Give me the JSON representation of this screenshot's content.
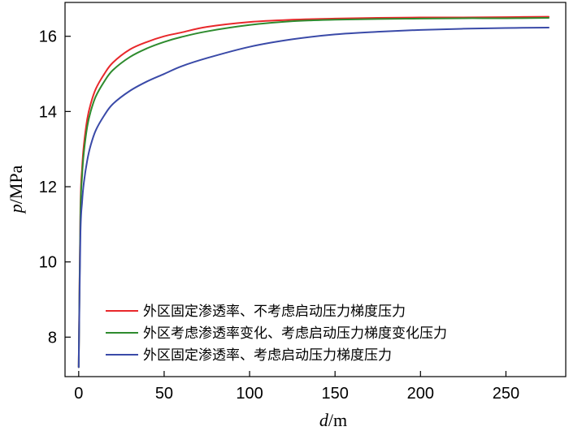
{
  "chart_data": {
    "type": "line",
    "xlabel_var": "d",
    "xlabel_unit": "/m",
    "ylabel_var": "p",
    "ylabel_unit": "/MPa",
    "xlim": [
      -8,
      285
    ],
    "ylim": [
      6.95,
      16.9
    ],
    "xticks": [
      0,
      50,
      100,
      150,
      200,
      250
    ],
    "yticks": [
      8,
      10,
      12,
      14,
      16
    ],
    "grid": false,
    "legend_position": "bottom-right",
    "series": [
      {
        "name": "外区固定渗透率、不考虑启动压力梯度压力",
        "color": "#e8282b",
        "x": [
          0,
          1,
          2,
          3,
          5,
          7,
          10,
          15,
          20,
          30,
          40,
          50,
          60,
          75,
          100,
          125,
          150,
          175,
          200,
          225,
          250,
          275
        ],
        "y": [
          7.2,
          11.4,
          12.5,
          13.1,
          13.8,
          14.2,
          14.6,
          15.0,
          15.3,
          15.65,
          15.85,
          16.0,
          16.1,
          16.25,
          16.38,
          16.44,
          16.47,
          16.49,
          16.5,
          16.5,
          16.51,
          16.52
        ]
      },
      {
        "name": "外区考虑渗透率变化、考虑启动压力梯度变化压力",
        "color": "#2e8b2e",
        "x": [
          0,
          1,
          2,
          3,
          5,
          7,
          10,
          15,
          20,
          30,
          40,
          50,
          60,
          75,
          100,
          125,
          150,
          175,
          200,
          225,
          250,
          275
        ],
        "y": [
          7.2,
          11.2,
          12.3,
          12.9,
          13.6,
          14.0,
          14.4,
          14.8,
          15.1,
          15.45,
          15.68,
          15.85,
          15.98,
          16.13,
          16.3,
          16.4,
          16.44,
          16.46,
          16.47,
          16.48,
          16.48,
          16.49
        ]
      },
      {
        "name": "外区固定渗透率、考虑启动压力梯度压力",
        "color": "#3a4aa8",
        "x": [
          0,
          1,
          2,
          3,
          5,
          7,
          10,
          15,
          20,
          30,
          40,
          50,
          60,
          75,
          100,
          125,
          150,
          175,
          200,
          225,
          250,
          275
        ],
        "y": [
          7.2,
          10.7,
          11.6,
          12.1,
          12.7,
          13.1,
          13.5,
          13.9,
          14.2,
          14.55,
          14.8,
          15.0,
          15.2,
          15.42,
          15.72,
          15.92,
          16.05,
          16.12,
          16.17,
          16.2,
          16.22,
          16.23
        ]
      }
    ]
  }
}
